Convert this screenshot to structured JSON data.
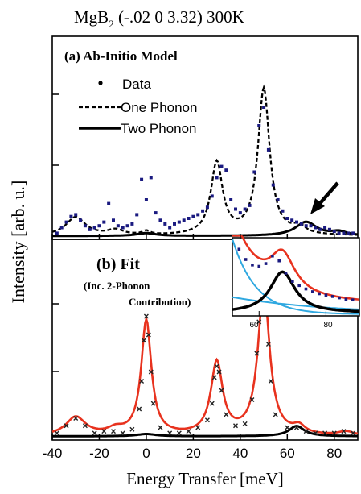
{
  "figure": {
    "title": {
      "compound": "MgB",
      "subscript": "2",
      "rest": "  (-.02  0  3.32)  300K"
    },
    "ylabel": "Intensity  [arb. u.]",
    "xlabel": "Energy Transfer  [meV]"
  },
  "panel_a": {
    "label": "(a)  Ab-Initio Model",
    "legend": {
      "data": "Data",
      "one_phonon": "One Phonon",
      "two_phonon": "Two Phonon"
    }
  },
  "panel_b": {
    "label": "(b)  Fit",
    "note_line1": "(Inc. 2-Phonon",
    "note_line2": "Contribution)"
  },
  "inset": {
    "ticks": [
      "60",
      "80"
    ]
  },
  "colors": {
    "fit": "#e8321e",
    "inset_component": "#2fa8e0",
    "two_phonon": "#000000",
    "data": "#1a1a80",
    "data_b": "#222222"
  },
  "chart_data": [
    {
      "type": "line",
      "panel": "a",
      "title": "(a)  Ab-Initio Model",
      "xlabel": "Energy Transfer  [meV]",
      "ylabel": "Intensity  [arb. u.]",
      "xlim": [
        -40,
        90
      ],
      "ylim": [
        0,
        1.0
      ],
      "series": [
        {
          "name": "One Phonon",
          "style": "dashed",
          "peaks": [
            {
              "center": -30,
              "height": 0.1,
              "width": 5
            },
            {
              "center": -13,
              "height": 0.028,
              "width": 4
            },
            {
              "center": 0,
              "height": 0.02,
              "width": 2
            },
            {
              "center": 30,
              "height": 0.39,
              "width": 3
            },
            {
              "center": 50,
              "height": 0.79,
              "width": 3
            },
            {
              "center": 65,
              "height": 0.04,
              "width": 3
            }
          ]
        },
        {
          "name": "Two Phonon",
          "style": "solid",
          "peaks": [
            {
              "center": 0,
              "height": 0.015,
              "width": 5
            },
            {
              "center": 68,
              "height": 0.075,
              "width": 5.5
            },
            {
              "center": 82,
              "height": 0.02,
              "width": 4
            }
          ]
        },
        {
          "name": "Data",
          "style": "points",
          "x": [
            -38,
            -36,
            -34,
            -32,
            -30,
            -28,
            -26,
            -24,
            -22,
            -20,
            -18,
            -16,
            -14,
            -12,
            -10,
            -8,
            -6,
            -4,
            -2,
            0,
            2,
            4,
            6,
            8,
            10,
            12,
            14,
            16,
            18,
            20,
            22,
            24,
            26,
            28,
            30,
            32,
            34,
            36,
            38,
            40,
            42,
            44,
            46,
            48,
            50,
            52,
            54,
            56,
            58,
            60,
            62,
            64,
            66,
            68,
            70,
            72,
            74,
            76,
            78,
            80,
            82,
            84,
            86,
            88
          ],
          "y": [
            0.02,
            0.05,
            0.08,
            0.11,
            0.12,
            0.09,
            0.06,
            0.04,
            0.05,
            0.06,
            0.08,
            0.18,
            0.09,
            0.06,
            0.05,
            0.06,
            0.07,
            0.12,
            0.31,
            0.2,
            0.32,
            0.13,
            0.09,
            0.07,
            0.05,
            0.07,
            0.08,
            0.09,
            0.1,
            0.11,
            0.12,
            0.14,
            0.16,
            0.22,
            0.32,
            0.38,
            0.36,
            0.2,
            0.15,
            0.13,
            0.15,
            0.17,
            0.35,
            0.6,
            0.7,
            0.47,
            0.28,
            0.2,
            0.14,
            0.1,
            0.09,
            0.08,
            0.07,
            0.06,
            0.06,
            0.05,
            0.04,
            0.05,
            0.04,
            0.03,
            0.02,
            0.02,
            0.02,
            0.02
          ]
        }
      ],
      "annotations": [
        "arrow pointing to two-phonon feature near 68 meV"
      ]
    },
    {
      "type": "line",
      "panel": "b",
      "title": "(b)  Fit",
      "xlabel": "Energy Transfer  [meV]",
      "ylabel": "Intensity  [arb. u.]",
      "xlim": [
        -40,
        90
      ],
      "xticks": [
        -40,
        -20,
        0,
        20,
        40,
        60,
        80
      ],
      "ylim": [
        0,
        1.0
      ],
      "series": [
        {
          "name": "Fit",
          "color": "#e8321e",
          "peaks": [
            {
              "center": -30,
              "height": 0.1,
              "width": 5
            },
            {
              "center": -13,
              "height": 0.03,
              "width": 4
            },
            {
              "center": 0,
              "height": 0.62,
              "width": 2.6
            },
            {
              "center": 30,
              "height": 0.39,
              "width": 3
            },
            {
              "center": 50,
              "height": 0.79,
              "width": 3
            },
            {
              "center": 65,
              "height": 0.04,
              "width": 3
            },
            {
              "center": 85,
              "height": 0.02,
              "width": 4
            }
          ]
        },
        {
          "name": "Two-Phonon",
          "color": "#000000",
          "peaks": [
            {
              "center": 0,
              "height": 0.012,
              "width": 5
            },
            {
              "center": 64,
              "height": 0.055,
              "width": 4
            }
          ]
        },
        {
          "name": "Data",
          "style": "points",
          "x": [
            -38,
            -34,
            -30,
            -26,
            -22,
            -18,
            -14,
            -10,
            -6,
            -3,
            -2,
            -1,
            0,
            1,
            2,
            3,
            6,
            10,
            14,
            18,
            22,
            26,
            28,
            29,
            30,
            31,
            32,
            34,
            38,
            42,
            45,
            47,
            48,
            49,
            50,
            51,
            52,
            53,
            55,
            60,
            64,
            68,
            72,
            76,
            80,
            84,
            88
          ],
          "y": [
            0.02,
            0.06,
            0.1,
            0.06,
            0.02,
            0.03,
            0.03,
            0.02,
            0.04,
            0.15,
            0.3,
            0.52,
            0.65,
            0.55,
            0.35,
            0.18,
            0.05,
            0.02,
            0.02,
            0.03,
            0.05,
            0.09,
            0.18,
            0.32,
            0.38,
            0.35,
            0.25,
            0.12,
            0.06,
            0.07,
            0.2,
            0.45,
            0.62,
            0.78,
            0.84,
            0.7,
            0.5,
            0.3,
            0.12,
            0.05,
            0.05,
            0.03,
            0.02,
            0.02,
            0.02,
            0.03,
            0.02
          ]
        }
      ]
    },
    {
      "type": "line",
      "panel": "inset",
      "xlim": [
        52,
        90
      ],
      "xticks": [
        60,
        80
      ],
      "series": [
        {
          "name": "Fit",
          "color": "#e8321e"
        },
        {
          "name": "Two-Phonon",
          "color": "#000000",
          "peaks": [
            {
              "center": 67,
              "height": 0.6,
              "width": 4.5
            }
          ]
        },
        {
          "name": "Tail",
          "color": "#2fa8e0"
        },
        {
          "name": "Data",
          "style": "points",
          "x": [
            54,
            56,
            58,
            60,
            62,
            64,
            66,
            68,
            70,
            72,
            74,
            76,
            78,
            80,
            82,
            84,
            86,
            88
          ],
          "y": [
            0.95,
            0.8,
            0.72,
            0.7,
            0.74,
            0.85,
            0.78,
            0.6,
            0.48,
            0.42,
            0.37,
            0.33,
            0.3,
            0.28,
            0.26,
            0.24,
            0.22,
            0.21
          ]
        }
      ]
    }
  ]
}
